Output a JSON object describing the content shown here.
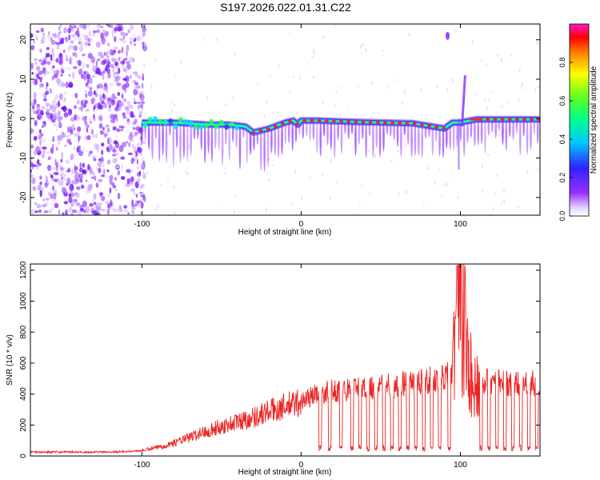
{
  "title": "S197.2026.022.01.31.C22",
  "colors": {
    "snr_line": "#ee2222",
    "axis": "#000000",
    "background": "#ffffff"
  },
  "chart_data": [
    {
      "type": "heatmap",
      "name": "spectrogram",
      "title": "S197.2026.022.01.31.C22",
      "xlabel": "Height of straight line (km)",
      "ylabel": "Frequency (Hz)",
      "xlim": [
        -170,
        150
      ],
      "ylim": [
        -24.5,
        24
      ],
      "xticks": [
        -100,
        0,
        100
      ],
      "yticks": [
        -20,
        -10,
        0,
        10,
        20
      ],
      "colorbar": {
        "label": "Normalized spectral amplitude",
        "range": [
          0,
          1
        ],
        "ticks": [
          0.0,
          0.2,
          0.4,
          0.6,
          0.8
        ],
        "colormap": "rainbow (white-violet-blue-cyan-green-yellow-red-magenta)"
      },
      "ridge": {
        "description": "dominant narrowband signal frequency vs height",
        "x": [
          -100,
          -80,
          -60,
          -45,
          -35,
          -30,
          -20,
          -10,
          -5,
          -2,
          0,
          10,
          30,
          50,
          70,
          90,
          95,
          100,
          110,
          130,
          150
        ],
        "y": [
          -1.0,
          -1.0,
          -1.5,
          -1.5,
          -2.0,
          -3.5,
          -2.5,
          -1.0,
          -0.5,
          -1.5,
          -0.5,
          -0.5,
          -0.8,
          -1.0,
          -1.2,
          -2.5,
          -1.0,
          -1.0,
          -0.2,
          -0.2,
          -0.2
        ]
      },
      "annotations": [
        {
          "x": 92,
          "y": 21,
          "note": "isolated burst"
        },
        {
          "x": 102,
          "y": 8,
          "note": "spike artifact"
        }
      ]
    },
    {
      "type": "line",
      "name": "snr",
      "xlabel": "Height of straight line (km)",
      "ylabel": "SNR (10 * v/v)",
      "xlim": [
        -170,
        150
      ],
      "ylim": [
        0,
        1240
      ],
      "xticks": [
        -100,
        0,
        100
      ],
      "yticks": [
        0,
        200,
        400,
        600,
        800,
        1000,
        1200
      ],
      "series": [
        {
          "name": "SNR",
          "x": [
            -170,
            -150,
            -130,
            -110,
            -100,
            -90,
            -80,
            -70,
            -60,
            -50,
            -40,
            -30,
            -20,
            -10,
            0,
            5,
            10,
            20,
            30,
            40,
            50,
            60,
            70,
            80,
            90,
            95,
            100,
            105,
            110,
            115,
            120,
            130,
            140,
            150
          ],
          "values": [
            25,
            25,
            25,
            28,
            35,
            55,
            85,
            120,
            160,
            190,
            220,
            250,
            290,
            320,
            350,
            380,
            400,
            420,
            430,
            440,
            450,
            460,
            480,
            490,
            500,
            540,
            1220,
            700,
            480,
            490,
            480,
            470,
            470,
            470
          ]
        }
      ],
      "dropouts_x": [
        12,
        18,
        25,
        32,
        37,
        42,
        47,
        52,
        57,
        62,
        67,
        72,
        77,
        82,
        87,
        93,
        98,
        106,
        113,
        118,
        123,
        128,
        133,
        138,
        143,
        148
      ]
    }
  ]
}
